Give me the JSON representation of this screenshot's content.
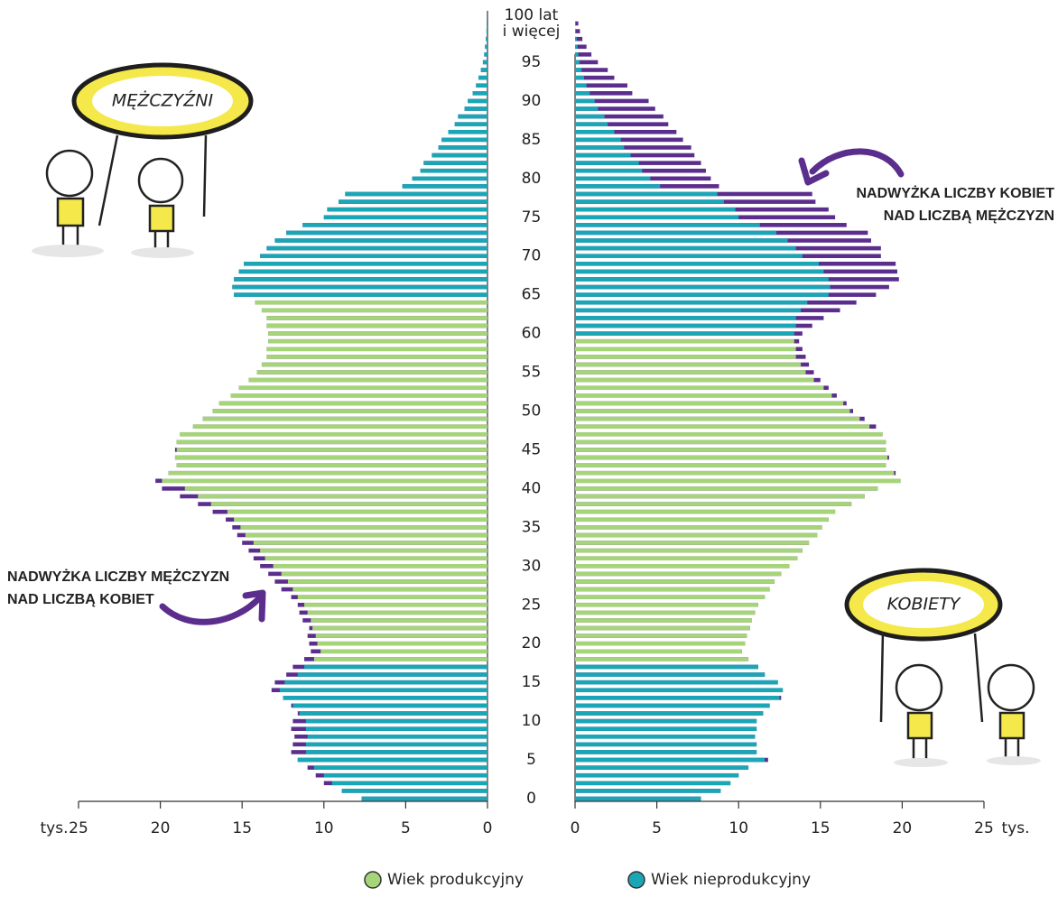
{
  "chart_data": {
    "type": "population_pyramid",
    "categories": [
      0,
      null,
      null,
      null,
      null,
      5,
      null,
      null,
      null,
      null,
      10,
      null,
      null,
      null,
      null,
      15,
      null,
      null,
      null,
      null,
      20,
      null,
      null,
      null,
      null,
      25,
      null,
      null,
      null,
      null,
      30,
      null,
      null,
      null,
      null,
      35,
      null,
      null,
      null,
      null,
      40,
      null,
      null,
      null,
      null,
      45,
      null,
      null,
      null,
      null,
      50,
      null,
      null,
      null,
      null,
      55,
      null,
      null,
      null,
      null,
      60,
      null,
      null,
      null,
      null,
      65,
      null,
      null,
      null,
      null,
      70,
      null,
      null,
      null,
      null,
      75,
      null,
      null,
      null,
      null,
      80,
      null,
      null,
      null,
      null,
      85,
      null,
      null,
      null,
      null,
      90,
      null,
      null,
      null,
      null,
      95,
      null,
      null,
      null,
      null,
      "100 lat\ni więcej"
    ],
    "series": [
      {
        "name": "MĘŻCZYŹNI",
        "side": "left",
        "productive_range": [
          18,
          64
        ],
        "values": [
          7.7,
          8.9,
          10.0,
          10.5,
          11.0,
          11.6,
          12.0,
          11.9,
          11.8,
          12.0,
          11.9,
          11.6,
          12.0,
          12.5,
          13.2,
          13.0,
          12.3,
          11.9,
          11.2,
          10.8,
          10.9,
          11.0,
          10.9,
          11.3,
          11.5,
          11.6,
          12.0,
          12.6,
          13.0,
          13.4,
          13.9,
          14.3,
          14.6,
          15.0,
          15.3,
          15.6,
          16.0,
          16.8,
          17.7,
          18.8,
          19.9,
          20.3,
          19.5,
          19.0,
          19.1,
          19.1,
          19.0,
          18.8,
          18.0,
          17.4,
          16.8,
          16.4,
          15.7,
          15.2,
          14.6,
          14.1,
          13.8,
          13.5,
          13.5,
          13.4,
          13.4,
          13.5,
          13.5,
          13.8,
          14.2,
          15.5,
          15.6,
          15.5,
          15.2,
          14.9,
          13.9,
          13.5,
          13.0,
          12.3,
          11.3,
          10.0,
          9.8,
          9.1,
          8.7,
          5.2,
          4.6,
          4.1,
          3.9,
          3.4,
          3.0,
          2.8,
          2.4,
          2.0,
          1.8,
          1.4,
          1.2,
          0.9,
          0.7,
          0.55,
          0.4,
          0.28,
          0.2,
          0.15,
          0.1,
          0.06,
          0.05
        ]
      },
      {
        "name": "KOBIETY",
        "side": "right",
        "productive_range": [
          18,
          59
        ],
        "values": [
          7.7,
          8.9,
          9.5,
          10.0,
          10.6,
          11.8,
          11.1,
          11.1,
          11.0,
          11.1,
          11.1,
          11.5,
          11.9,
          12.6,
          12.7,
          12.4,
          11.6,
          11.2,
          10.6,
          10.2,
          10.4,
          10.5,
          10.7,
          10.8,
          11.0,
          11.2,
          11.6,
          11.9,
          12.2,
          12.6,
          13.1,
          13.6,
          13.9,
          14.3,
          14.8,
          15.1,
          15.5,
          15.9,
          16.9,
          17.7,
          18.5,
          19.9,
          19.6,
          19.0,
          19.2,
          19.0,
          19.0,
          18.8,
          18.4,
          17.7,
          17.0,
          16.6,
          16.0,
          15.5,
          15.0,
          14.6,
          14.3,
          14.1,
          13.9,
          13.7,
          13.9,
          14.5,
          15.2,
          16.2,
          17.2,
          18.4,
          19.2,
          19.8,
          19.7,
          19.6,
          18.7,
          18.7,
          18.1,
          17.9,
          16.6,
          15.9,
          15.5,
          14.7,
          14.5,
          8.8,
          8.3,
          8.0,
          7.7,
          7.3,
          7.1,
          6.6,
          6.2,
          5.7,
          5.4,
          4.9,
          4.5,
          3.5,
          3.2,
          2.4,
          2.0,
          1.4,
          1.0,
          0.7,
          0.45,
          0.3,
          0.2
        ]
      }
    ],
    "colors": {
      "productive": "#a6d479",
      "nonproductive": "#1ba6b6",
      "surplus": "#5b2e8d"
    },
    "xlim": [
      0,
      25
    ],
    "xticks": [
      0,
      5,
      10,
      15,
      20,
      25
    ],
    "x_unit": "tys.",
    "legend": [
      {
        "label": "Wiek produkcyjny",
        "key": "productive"
      },
      {
        "label": "Wiek nieprodukcyjny",
        "key": "nonproductive"
      }
    ],
    "annotations": [
      [
        "NADWYŻKA LICZBY KOBIET",
        "NAD LICZBĄ MĘŻCZYZN"
      ],
      [
        "NADWYŻKA LICZBY MĘŻCZYZN",
        "NAD LICZBĄ KOBIET"
      ]
    ]
  }
}
